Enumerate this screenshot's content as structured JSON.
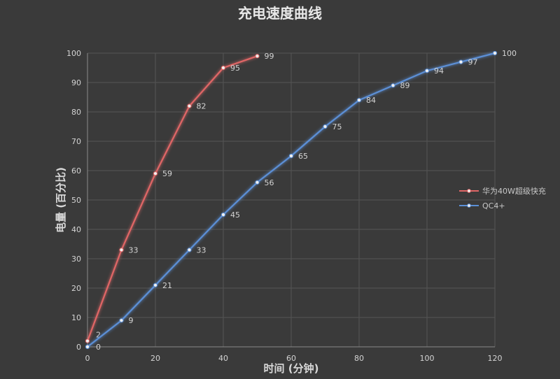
{
  "chart_data": {
    "type": "line",
    "title": "充电速度曲线",
    "xlabel": "时间 (分钟)",
    "ylabel": "电量 (百分比)",
    "xlim": [
      0,
      120
    ],
    "ylim": [
      0,
      100
    ],
    "xticks": [
      0,
      20,
      40,
      60,
      80,
      100,
      120
    ],
    "yticks": [
      0,
      10,
      20,
      30,
      40,
      50,
      60,
      70,
      80,
      90,
      100
    ],
    "grid": true,
    "legend_position": "right",
    "series": [
      {
        "name": "华为40W超级快充",
        "color": "#e06666",
        "x": [
          0,
          10,
          20,
          30,
          40,
          50
        ],
        "y": [
          2,
          33,
          59,
          82,
          95,
          99
        ]
      },
      {
        "name": "QC4+",
        "color": "#5b8fd6",
        "x": [
          0,
          10,
          20,
          30,
          40,
          50,
          60,
          70,
          80,
          90,
          100,
          110,
          120
        ],
        "y": [
          0,
          9,
          21,
          33,
          45,
          56,
          65,
          75,
          84,
          89,
          94,
          97,
          100
        ]
      }
    ]
  }
}
